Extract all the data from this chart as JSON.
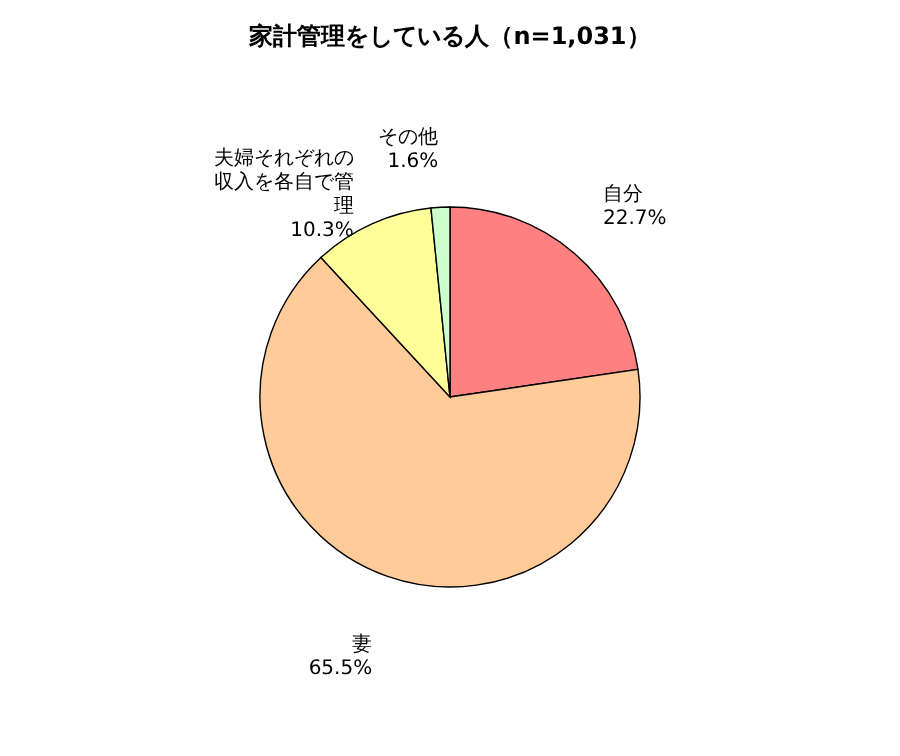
{
  "chart_data": {
    "type": "pie",
    "title": "家計管理をしている人（n=1,031）",
    "categories": [
      "自分",
      "妻",
      "夫婦それぞれの収入を各自で管理",
      "その他"
    ],
    "values": [
      22.7,
      65.5,
      10.3,
      1.6
    ],
    "colors": [
      "#ff8080",
      "#ffcc99",
      "#ffff99",
      "#ccffcc"
    ],
    "value_labels": [
      "22.7%",
      "65.5%",
      "10.3%",
      "1.6%"
    ],
    "legend": false
  }
}
